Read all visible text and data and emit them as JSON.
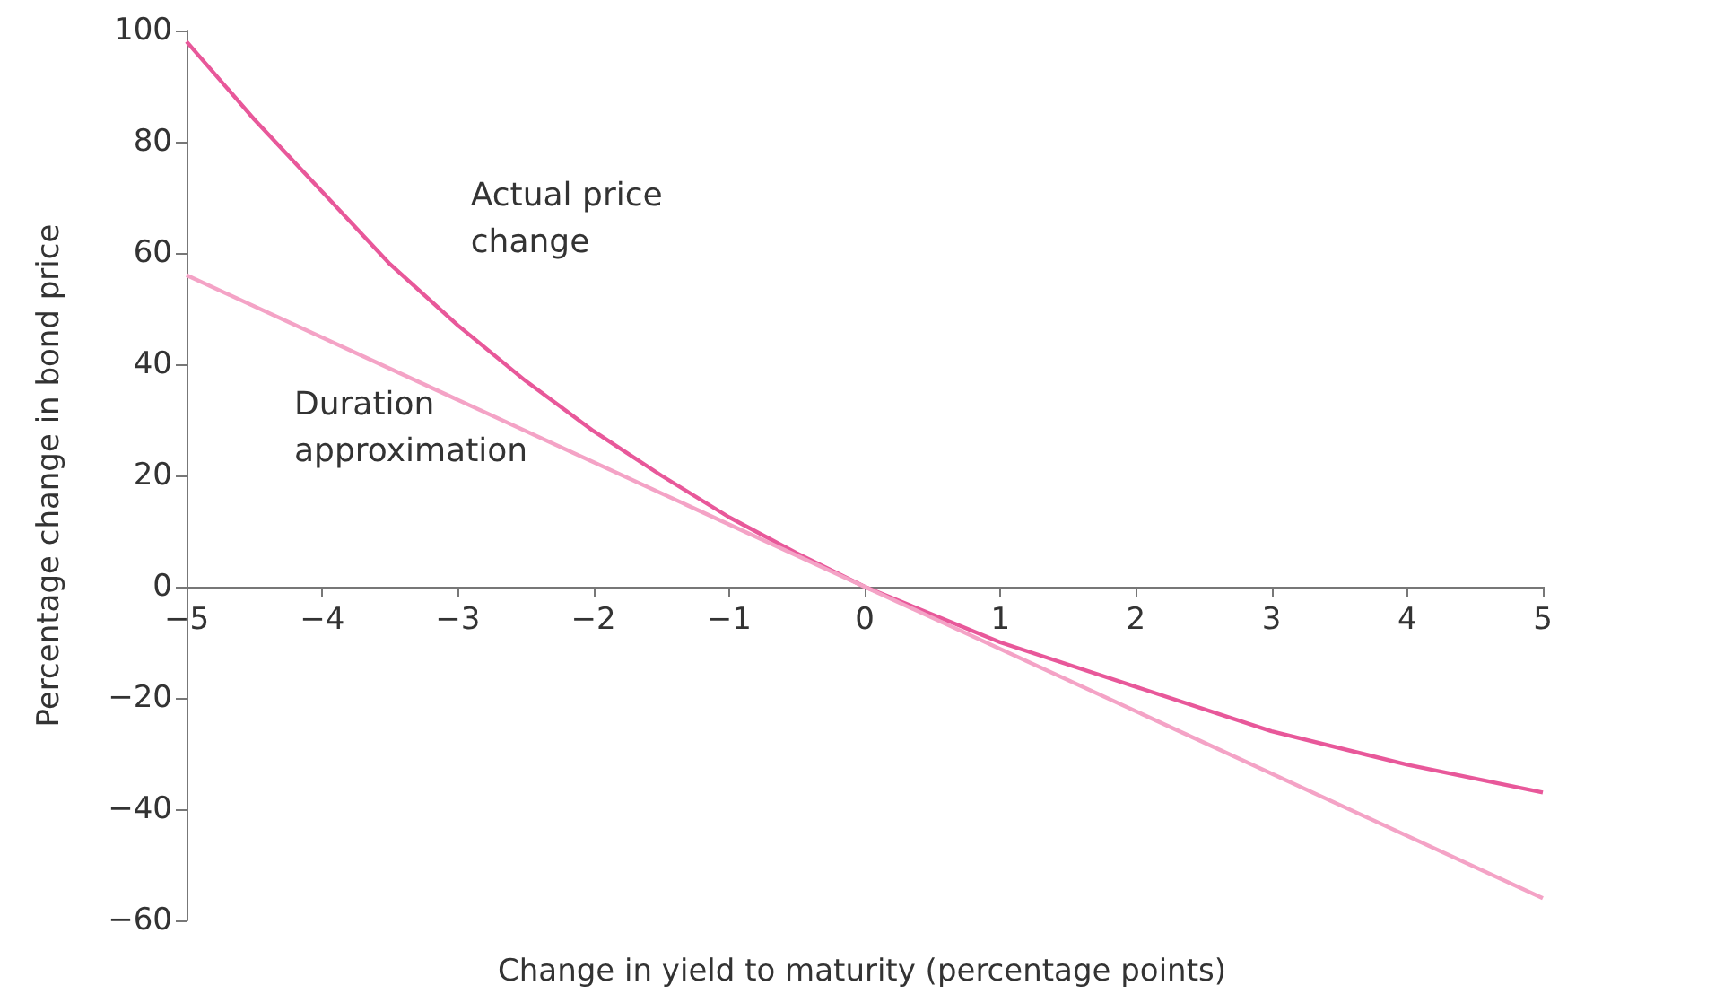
{
  "chart_data": {
    "type": "line",
    "xlabel": "Change in yield to maturity (percentage points)",
    "ylabel": "Percentage change in bond price",
    "series": [
      {
        "name": "Actual price change",
        "color": "#e8589a",
        "x": [
          -5,
          -4.5,
          -4,
          -3.5,
          -3,
          -2.5,
          -2,
          -1.5,
          -1,
          -0.5,
          0,
          1,
          2,
          3,
          4,
          5
        ],
        "values": [
          98,
          84,
          71,
          58,
          47,
          37,
          28,
          20,
          12.5,
          6,
          0,
          -10,
          -18,
          -26,
          -32,
          -37
        ]
      },
      {
        "name": "Duration approximation",
        "color": "#f4a3c6",
        "x": [
          -5,
          5
        ],
        "values": [
          56,
          -56
        ]
      }
    ],
    "xlim": [
      -5,
      5
    ],
    "xticks": [
      {
        "value": -5,
        "label": "−5"
      },
      {
        "value": -4,
        "label": "−4"
      },
      {
        "value": -3,
        "label": "−3"
      },
      {
        "value": -2,
        "label": "−2"
      },
      {
        "value": -1,
        "label": "−1"
      },
      0,
      1,
      2,
      3,
      4,
      5
    ],
    "ylim": [
      -60,
      100
    ],
    "yticks": [
      {
        "value": -60,
        "label": "−60"
      },
      {
        "value": -40,
        "label": "−40"
      },
      {
        "value": -20,
        "label": "−20"
      },
      0,
      20,
      40,
      60,
      80,
      100
    ],
    "legend": false,
    "marker": "none",
    "line_style": "solid"
  }
}
